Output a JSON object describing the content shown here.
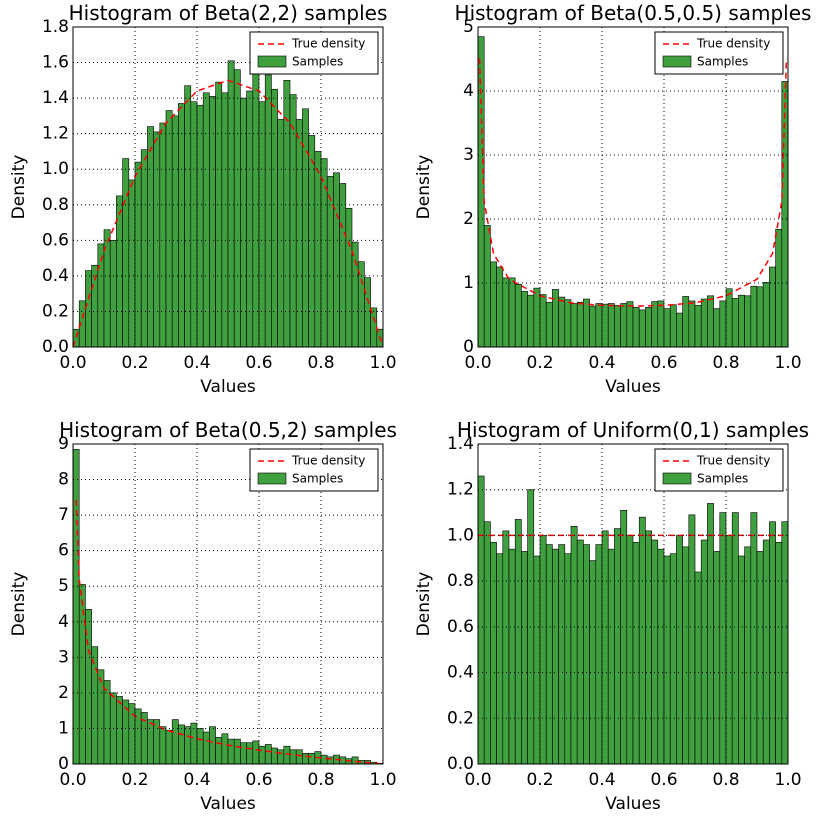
{
  "chart_data": [
    {
      "type": "histogram",
      "title": "Histogram of Beta(2,2) samples",
      "xlabel": "Values",
      "ylabel": "Density",
      "name": "Samples",
      "color": "#40a040",
      "bins": [
        0,
        0.02,
        0.04,
        0.06,
        0.08,
        0.1,
        0.12,
        0.14,
        0.16,
        0.18,
        0.2,
        0.22,
        0.24,
        0.26,
        0.28,
        0.3,
        0.32,
        0.34,
        0.36,
        0.38,
        0.4,
        0.42,
        0.44,
        0.46,
        0.48,
        0.5,
        0.52,
        0.54,
        0.56,
        0.58,
        0.6,
        0.62,
        0.64,
        0.66,
        0.68,
        0.7,
        0.72,
        0.74,
        0.76,
        0.78,
        0.8,
        0.82,
        0.84,
        0.86,
        0.88,
        0.9,
        0.92,
        0.94,
        0.96,
        0.98,
        1
      ],
      "values": [
        0.1,
        0.26,
        0.43,
        0.46,
        0.58,
        0.66,
        0.6,
        0.85,
        1.06,
        0.94,
        1.04,
        1.11,
        1.24,
        1.21,
        1.26,
        1.33,
        1.3,
        1.37,
        1.47,
        1.38,
        1.36,
        1.43,
        1.41,
        1.49,
        1.43,
        1.61,
        1.56,
        1.4,
        1.44,
        1.6,
        1.38,
        1.53,
        1.45,
        1.28,
        1.5,
        1.42,
        1.28,
        1.34,
        1.19,
        1.1,
        1.06,
        0.96,
        0.98,
        0.92,
        0.78,
        0.59,
        0.48,
        0.39,
        0.22,
        0.1
      ],
      "curve": {
        "name": "True density",
        "color": "#ff0000",
        "x": [
          0,
          0.1,
          0.2,
          0.3,
          0.4,
          0.5,
          0.6,
          0.7,
          0.8,
          0.9,
          1
        ],
        "values": [
          0,
          0.54,
          0.96,
          1.26,
          1.44,
          1.5,
          1.44,
          1.26,
          0.96,
          0.54,
          0
        ]
      },
      "xlim": [
        0,
        1
      ],
      "ylim": [
        0,
        1.8
      ],
      "xticks": [
        {
          "value": 0,
          "label": "0.0"
        },
        0.2,
        0.4,
        0.6,
        0.8,
        {
          "value": 1,
          "label": "1.0"
        }
      ],
      "yticks": [
        {
          "value": 0,
          "label": "0.0"
        },
        0.2,
        0.4,
        0.6,
        0.8,
        {
          "value": 1,
          "label": "1.0"
        },
        1.2,
        1.4,
        1.6,
        1.8
      ],
      "grid": true,
      "legend": "upper right"
    },
    {
      "type": "histogram",
      "title": "Histogram of Beta(0.5,0.5) samples",
      "xlabel": "Values",
      "ylabel": "Density",
      "name": "Samples",
      "color": "#40a040",
      "bins": [
        0,
        0.02,
        0.04,
        0.06,
        0.08,
        0.1,
        0.12,
        0.14,
        0.16,
        0.18,
        0.2,
        0.22,
        0.24,
        0.26,
        0.28,
        0.3,
        0.32,
        0.34,
        0.36,
        0.38,
        0.4,
        0.42,
        0.44,
        0.46,
        0.48,
        0.5,
        0.52,
        0.54,
        0.56,
        0.58,
        0.6,
        0.62,
        0.64,
        0.66,
        0.68,
        0.7,
        0.72,
        0.74,
        0.76,
        0.78,
        0.8,
        0.82,
        0.84,
        0.86,
        0.88,
        0.9,
        0.92,
        0.94,
        0.96,
        0.98,
        1
      ],
      "values": [
        4.85,
        1.9,
        1.33,
        1.25,
        1.08,
        1.08,
        0.98,
        0.87,
        0.81,
        0.92,
        0.82,
        0.7,
        0.9,
        0.78,
        0.74,
        0.68,
        0.7,
        0.75,
        0.64,
        0.68,
        0.67,
        0.68,
        0.65,
        0.68,
        0.71,
        0.62,
        0.58,
        0.62,
        0.71,
        0.72,
        0.6,
        0.66,
        0.53,
        0.79,
        0.72,
        0.65,
        0.75,
        0.8,
        0.6,
        0.72,
        0.91,
        0.76,
        0.81,
        0.8,
        0.95,
        0.94,
        1.01,
        1.25,
        1.84,
        4.15
      ],
      "curve": {
        "name": "True density",
        "color": "#ff0000",
        "x": [
          0.005,
          0.02,
          0.05,
          0.1,
          0.2,
          0.3,
          0.4,
          0.5,
          0.6,
          0.7,
          0.8,
          0.9,
          0.95,
          0.98,
          0.995
        ],
        "values": [
          4.51,
          2.27,
          1.46,
          1.06,
          0.8,
          0.69,
          0.65,
          0.64,
          0.65,
          0.69,
          0.8,
          1.06,
          1.46,
          2.27,
          4.51
        ]
      },
      "xlim": [
        0,
        1
      ],
      "ylim": [
        0,
        5
      ],
      "xticks": [
        {
          "value": 0,
          "label": "0.0"
        },
        0.2,
        0.4,
        0.6,
        0.8,
        {
          "value": 1,
          "label": "1.0"
        }
      ],
      "yticks": [
        0,
        1,
        2,
        3,
        4,
        5
      ],
      "grid": true,
      "legend": "upper right"
    },
    {
      "type": "histogram",
      "title": "Histogram of Beta(0.5,2) samples",
      "xlabel": "Values",
      "ylabel": "Density",
      "name": "Samples",
      "color": "#40a040",
      "bins": [
        0,
        0.02,
        0.04,
        0.06,
        0.08,
        0.1,
        0.12,
        0.14,
        0.16,
        0.18,
        0.2,
        0.22,
        0.24,
        0.26,
        0.28,
        0.3,
        0.32,
        0.34,
        0.36,
        0.38,
        0.4,
        0.42,
        0.44,
        0.46,
        0.48,
        0.5,
        0.52,
        0.54,
        0.56,
        0.58,
        0.6,
        0.62,
        0.64,
        0.66,
        0.68,
        0.7,
        0.72,
        0.74,
        0.76,
        0.78,
        0.8,
        0.82,
        0.84,
        0.86,
        0.88,
        0.9,
        0.92,
        0.94,
        0.96,
        0.98,
        1
      ],
      "values": [
        8.85,
        5.05,
        4.35,
        3.3,
        2.65,
        2.35,
        2.0,
        1.9,
        1.8,
        1.7,
        1.55,
        1.45,
        1.25,
        1.25,
        1.05,
        0.95,
        1.25,
        1.1,
        1.05,
        1.15,
        1.0,
        0.9,
        1.05,
        0.75,
        0.85,
        0.7,
        0.7,
        0.6,
        0.6,
        0.65,
        0.5,
        0.55,
        0.45,
        0.4,
        0.5,
        0.4,
        0.4,
        0.3,
        0.3,
        0.35,
        0.25,
        0.2,
        0.25,
        0.2,
        0.15,
        0.2,
        0.1,
        0.1,
        0.05,
        0.02
      ],
      "curve": {
        "name": "True density",
        "color": "#ff0000",
        "x": [
          0.01,
          0.02,
          0.05,
          0.1,
          0.2,
          0.3,
          0.4,
          0.5,
          0.6,
          0.7,
          0.8,
          0.9,
          1
        ],
        "values": [
          7.43,
          5.2,
          3.19,
          2.13,
          1.34,
          0.96,
          0.71,
          0.53,
          0.39,
          0.27,
          0.17,
          0.08,
          0
        ]
      },
      "xlim": [
        0,
        1
      ],
      "ylim": [
        0,
        9
      ],
      "xticks": [
        {
          "value": 0,
          "label": "0.0"
        },
        0.2,
        0.4,
        0.6,
        0.8,
        {
          "value": 1,
          "label": "1.0"
        }
      ],
      "yticks": [
        0,
        1,
        2,
        3,
        4,
        5,
        6,
        7,
        8,
        9
      ],
      "grid": true,
      "legend": "upper right"
    },
    {
      "type": "histogram",
      "title": "Histogram of Uniform(0,1) samples",
      "xlabel": "Values",
      "ylabel": "Density",
      "name": "Samples",
      "color": "#40a040",
      "bins": [
        0,
        0.02,
        0.04,
        0.06,
        0.08,
        0.1,
        0.12,
        0.14,
        0.16,
        0.18,
        0.2,
        0.22,
        0.24,
        0.26,
        0.28,
        0.3,
        0.32,
        0.34,
        0.36,
        0.38,
        0.4,
        0.42,
        0.44,
        0.46,
        0.48,
        0.5,
        0.52,
        0.54,
        0.56,
        0.58,
        0.6,
        0.62,
        0.64,
        0.66,
        0.68,
        0.7,
        0.72,
        0.74,
        0.76,
        0.78,
        0.8,
        0.82,
        0.84,
        0.86,
        0.88,
        0.9,
        0.92,
        0.94,
        0.96,
        0.98,
        1
      ],
      "values": [
        1.26,
        1.06,
        0.97,
        0.92,
        1.02,
        0.94,
        1.07,
        0.93,
        1.2,
        0.91,
        1.0,
        0.96,
        0.94,
        0.96,
        0.92,
        1.04,
        0.98,
        0.96,
        0.89,
        0.96,
        1.02,
        0.94,
        1.03,
        1.11,
        1.0,
        0.97,
        1.08,
        1.02,
        0.98,
        0.94,
        0.91,
        0.92,
        1.0,
        0.95,
        1.09,
        0.84,
        0.98,
        1.14,
        0.93,
        1.1,
        1.0,
        1.1,
        0.91,
        0.95,
        1.1,
        0.93,
        0.98,
        1.06,
        0.97,
        1.06
      ],
      "curve": {
        "name": "True density",
        "color": "#ff0000",
        "x": [
          0,
          1
        ],
        "values": [
          1,
          1
        ]
      },
      "xlim": [
        0,
        1
      ],
      "ylim": [
        0,
        1.4
      ],
      "xticks": [
        {
          "value": 0,
          "label": "0.0"
        },
        0.2,
        0.4,
        0.6,
        0.8,
        {
          "value": 1,
          "label": "1.0"
        }
      ],
      "yticks": [
        {
          "value": 0,
          "label": "0.0"
        },
        0.2,
        0.4,
        0.6,
        0.8,
        {
          "value": 1,
          "label": "1.0"
        },
        1.2,
        1.4
      ],
      "grid": true,
      "legend": "upper right"
    }
  ]
}
